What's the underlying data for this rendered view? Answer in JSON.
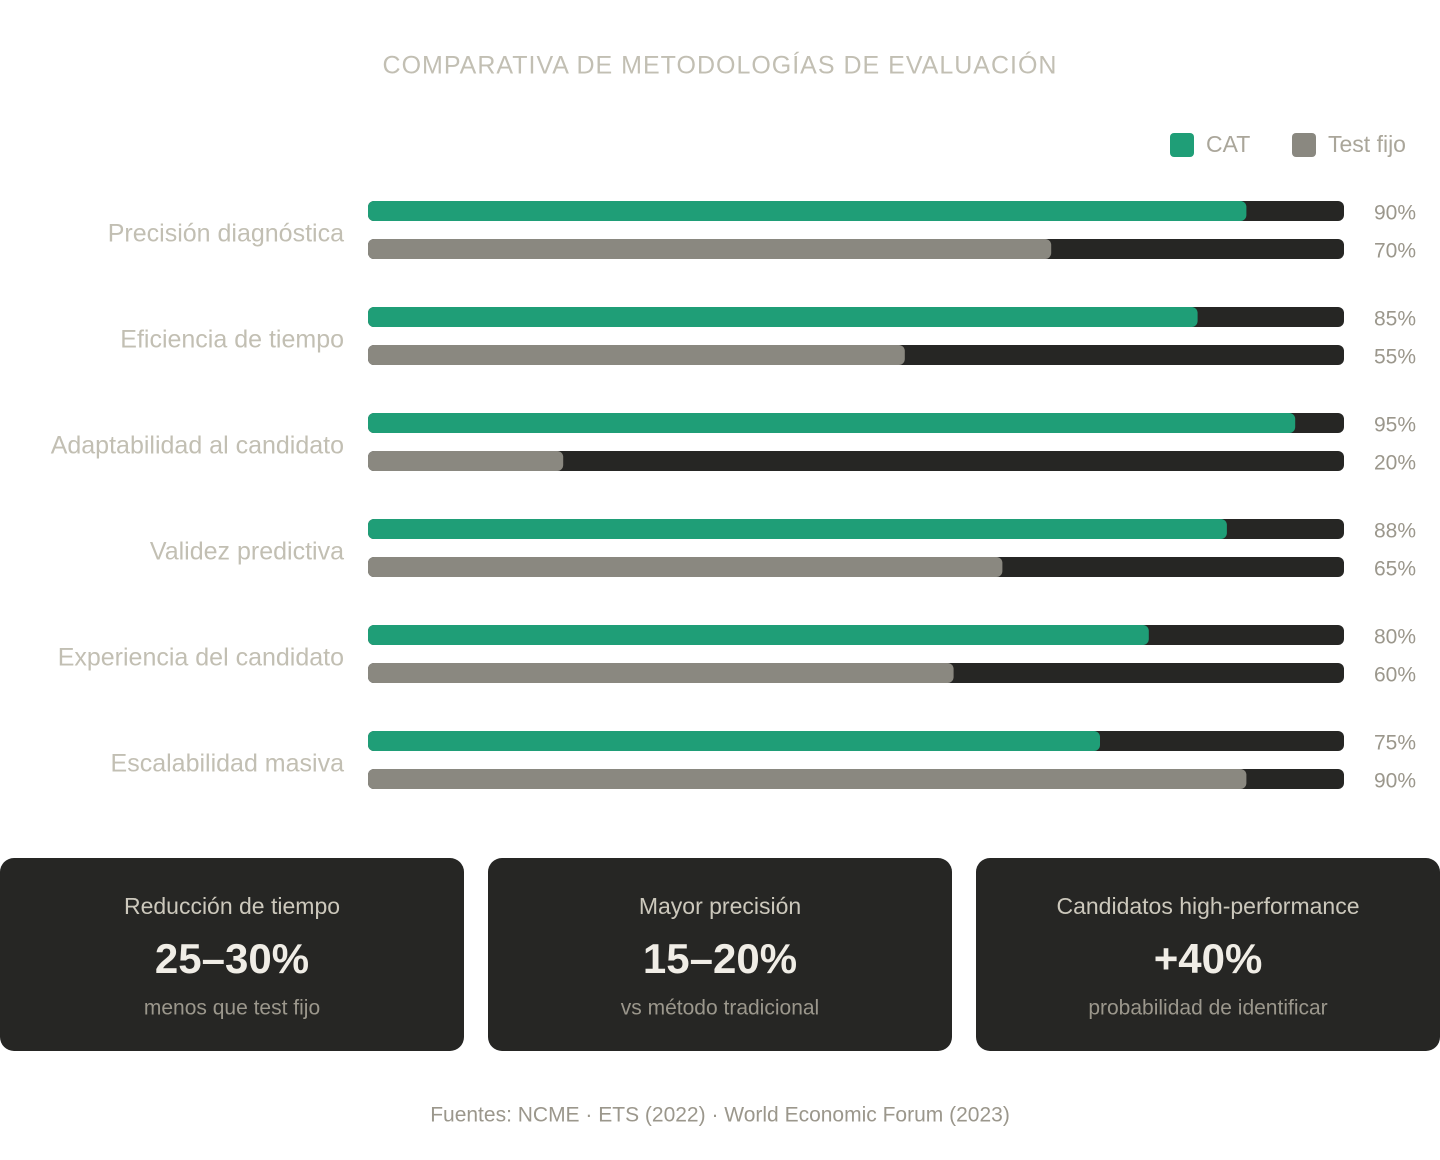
{
  "chart_data": {
    "type": "hbar",
    "title": "COMPARATIVA DE METODOLOGÍAS DE EVALUACIÓN",
    "categories": [
      "Precisión diagnóstica",
      "Eficiencia de tiempo",
      "Adaptabilidad al candidato",
      "Validez predictiva",
      "Experiencia del candidato",
      "Escalabilidad masiva"
    ],
    "series": [
      {
        "name": "CAT",
        "color": "#1f9e77",
        "values": [
          90,
          85,
          95,
          88,
          80,
          75
        ],
        "value_labels": [
          "90%",
          "85%",
          "95%",
          "88%",
          "80%",
          "75%"
        ]
      },
      {
        "name": "Test fijo",
        "color": "#8a8880",
        "values": [
          70,
          55,
          20,
          65,
          60,
          90
        ],
        "value_labels": [
          "70%",
          "55%",
          "20%",
          "65%",
          "60%",
          "90%"
        ]
      }
    ],
    "xlim": [
      0,
      100
    ],
    "legend": "top-right"
  },
  "stats": [
    {
      "label": "Reducción de tiempo",
      "value": "25–30%",
      "note": "menos que test fijo"
    },
    {
      "label": "Mayor precisión",
      "value": "15–20%",
      "note": "vs método tradicional"
    },
    {
      "label": "Candidatos high-performance",
      "value": "+40%",
      "note": "probabilidad de identificar"
    }
  ],
  "footer": "Fuentes: NCME · ETS (2022) · World Economic Forum (2023)"
}
